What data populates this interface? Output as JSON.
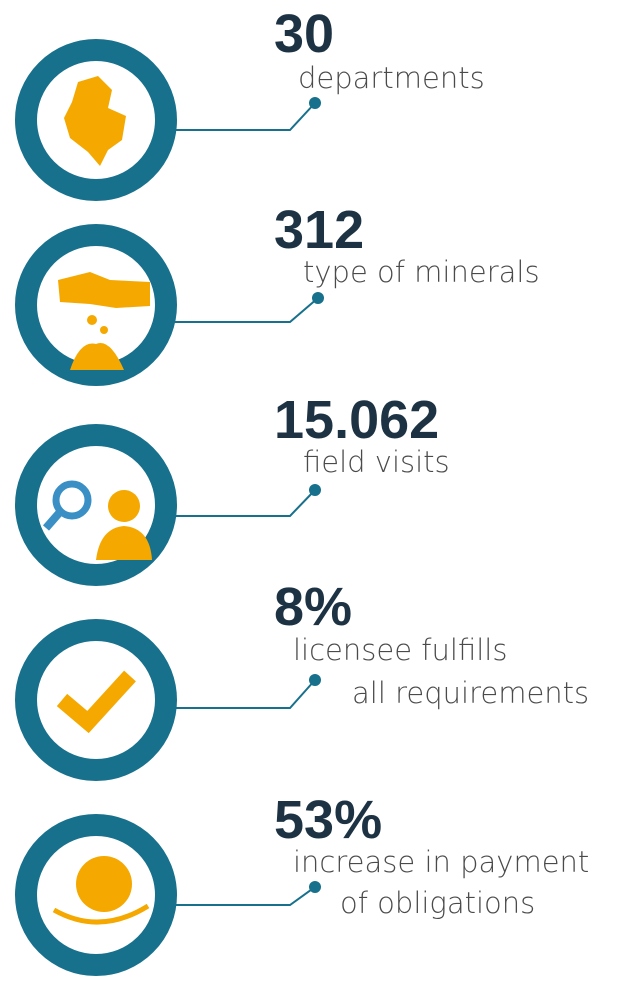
{
  "items": [
    {
      "value": "30",
      "label": [
        "departments"
      ]
    },
    {
      "value": "312",
      "label": [
        "type of minerals"
      ]
    },
    {
      "value": "15.062",
      "label": [
        "field visits"
      ]
    },
    {
      "value": "8%",
      "label": [
        "licensee fulfills",
        "all requirements"
      ]
    },
    {
      "value": "53%",
      "label": [
        "increase in payment",
        "of obligations"
      ]
    }
  ]
}
